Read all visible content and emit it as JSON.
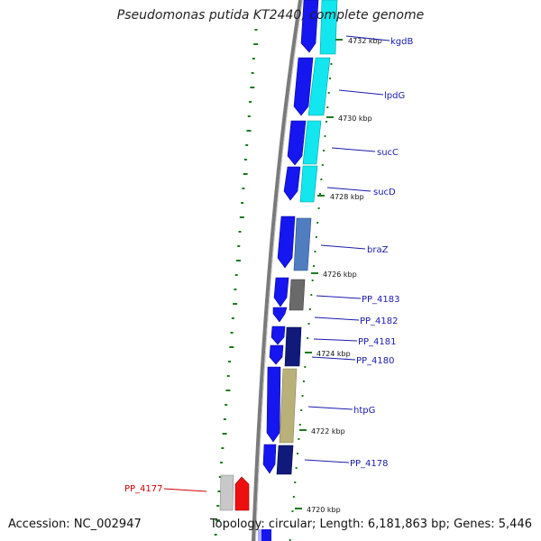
{
  "title": "Pseudomonas putida KT2440, complete genome",
  "footer": {
    "accession": "Accession: NC_002947",
    "summary": "Topology: circular; Length: 6,181,863 bp; Genes: 5,446"
  },
  "colors": {
    "forward_cds": "#1616f0",
    "cyan_module": "#12e6ee",
    "braZ": "#4f7dc0",
    "grey_gene": "#6a6a6a",
    "navy_gene": "#0f1a7a",
    "htpG": "#b9b07a",
    "PP_4177": "#ee1010",
    "label_blue": "#1a1ab0",
    "label_red": "#cc0000",
    "tick_green": "#1f7a1f",
    "backbone": "#7a7a7a"
  },
  "kbp_labels": [
    "4732 kbp",
    "4730 kbp",
    "4728 kbp",
    "4726 kbp",
    "4724 kbp",
    "4722 kbp",
    "4720 kbp"
  ],
  "gene_labels": [
    {
      "name": "kgdB",
      "color": "blue"
    },
    {
      "name": "lpdG",
      "color": "blue"
    },
    {
      "name": "sucC",
      "color": "blue"
    },
    {
      "name": "sucD",
      "color": "blue"
    },
    {
      "name": "braZ",
      "color": "blue"
    },
    {
      "name": "PP_4183",
      "color": "blue"
    },
    {
      "name": "PP_4182",
      "color": "blue"
    },
    {
      "name": "PP_4181",
      "color": "blue"
    },
    {
      "name": "PP_4180",
      "color": "blue"
    },
    {
      "name": "htpG",
      "color": "blue"
    },
    {
      "name": "PP_4178",
      "color": "blue"
    },
    {
      "name": "PP_4177",
      "color": "red"
    }
  ]
}
